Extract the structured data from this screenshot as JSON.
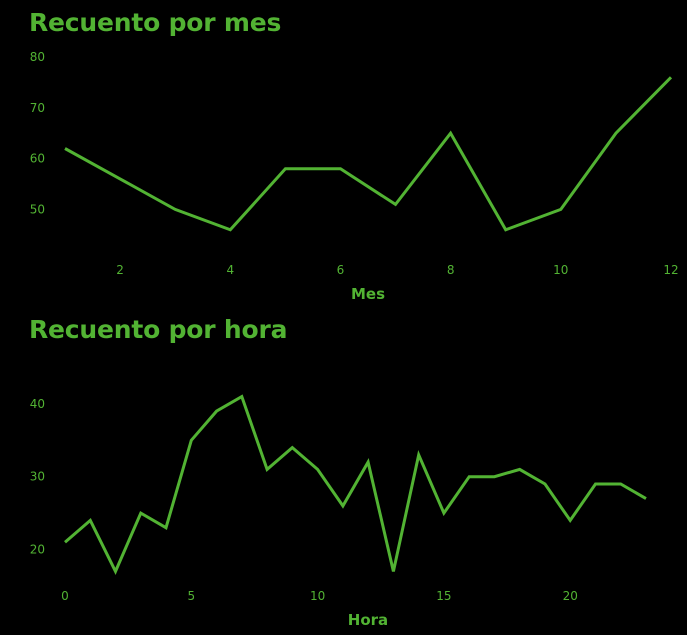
{
  "colors": {
    "background": "#000000",
    "accent": "#52b333"
  },
  "chart_data": [
    {
      "type": "line",
      "title": "Recuento por mes",
      "xlabel": "Mes",
      "ylabel": "",
      "x": [
        1,
        2,
        3,
        4,
        5,
        6,
        7,
        8,
        9,
        10,
        11,
        12
      ],
      "series": [
        {
          "values": [
            62,
            56,
            50,
            46,
            58,
            58,
            51,
            65,
            46,
            50,
            65,
            76
          ]
        }
      ],
      "xlim": [
        1,
        12
      ],
      "ylim": [
        43,
        80
      ],
      "xticks": [
        2,
        4,
        6,
        8,
        10,
        12
      ],
      "yticks": [
        50,
        60,
        70,
        80
      ],
      "grid": false,
      "legend": "none"
    },
    {
      "type": "line",
      "title": "Recuento por hora",
      "xlabel": "Hora",
      "ylabel": "",
      "x": [
        0,
        1,
        2,
        3,
        4,
        5,
        6,
        7,
        8,
        9,
        10,
        11,
        12,
        13,
        14,
        15,
        16,
        17,
        18,
        19,
        20,
        21,
        22,
        23
      ],
      "series": [
        {
          "values": [
            21,
            24,
            17,
            25,
            23,
            35,
            39,
            41,
            31,
            34,
            31,
            26,
            32,
            17,
            33,
            25,
            30,
            30,
            31,
            29,
            24,
            29,
            29,
            27
          ]
        }
      ],
      "xlim": [
        0,
        23
      ],
      "ylim": [
        15,
        43
      ],
      "xticks": [
        0,
        5,
        10,
        15,
        20
      ],
      "yticks": [
        20,
        30,
        40
      ],
      "grid": false,
      "legend": "none"
    }
  ]
}
